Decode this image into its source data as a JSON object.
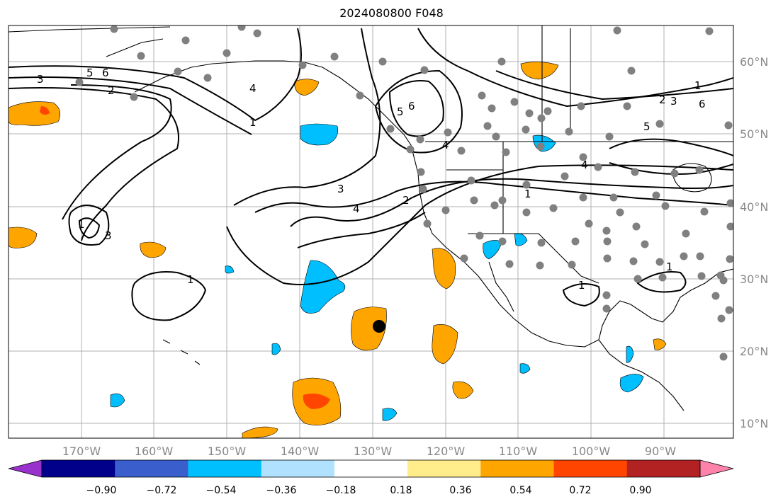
{
  "title": "2024080800 F048",
  "map": {
    "lon_labels": [
      "170°W",
      "160°W",
      "150°W",
      "140°W",
      "130°W",
      "120°W",
      "110°W",
      "100°W",
      "90°W"
    ],
    "lat_labels": [
      "60°N",
      "50°N",
      "40°N",
      "30°N",
      "20°N",
      "10°N"
    ],
    "contour_labels": [
      "1",
      "2",
      "3",
      "4",
      "5",
      "6"
    ],
    "colors": {
      "land_line": "#000000",
      "grid": "#b0b0b0",
      "contour": "#000000",
      "station": "#808080",
      "marker": "#000000"
    }
  },
  "colorbar": {
    "labels": [
      "−0.90",
      "−0.72",
      "−0.54",
      "−0.36",
      "−0.18",
      "0.18",
      "0.36",
      "0.54",
      "0.72",
      "0.90"
    ],
    "colors": [
      "#9932cc",
      "#00008b",
      "#3a5fcd",
      "#00bfff",
      "#b0e2ff",
      "#ffffff",
      "#ffec8b",
      "#ffa500",
      "#ff4500",
      "#b22222",
      "#ff82ab"
    ]
  }
}
